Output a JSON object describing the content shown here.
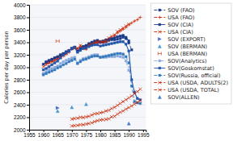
{
  "chart_data": {
    "type": "line",
    "ylabel": "Calories per day per person",
    "xlim": [
      1955,
      1996
    ],
    "ylim": [
      2000,
      4000
    ],
    "xticks": [
      1955,
      1960,
      1965,
      1970,
      1975,
      1980,
      1985,
      1990,
      1995
    ],
    "yticks": [
      2000,
      2200,
      2400,
      2600,
      2800,
      3000,
      3200,
      3400,
      3600,
      3800,
      4000
    ],
    "grid": "y",
    "legend": "right",
    "series": [
      {
        "name": "SOV (FAO)",
        "color": "#1a3a8a",
        "line_style": "dashed",
        "marker": "square",
        "x": [
          1961,
          1962,
          1963,
          1964,
          1965,
          1966,
          1967,
          1968,
          1969,
          1970,
          1971,
          1972,
          1973,
          1974,
          1975,
          1976,
          1977,
          1978,
          1979,
          1980,
          1981,
          1982,
          1983,
          1984,
          1985,
          1986,
          1987,
          1988,
          1989,
          1990,
          1991
        ],
        "values": [
          3090,
          3110,
          3130,
          3150,
          3160,
          3190,
          3210,
          3240,
          3260,
          3300,
          3320,
          3260,
          3300,
          3330,
          3340,
          3360,
          3380,
          3400,
          3410,
          3400,
          3400,
          3410,
          3430,
          3440,
          3440,
          3450,
          3460,
          3480,
          3460,
          3390,
          3280
        ]
      },
      {
        "name": "USA (FAO)",
        "color": "#cc2200",
        "line_style": "dashed",
        "marker": "plus",
        "x": [
          1961,
          1962,
          1963,
          1964,
          1965,
          1966,
          1967,
          1968,
          1969,
          1970,
          1971,
          1972,
          1973,
          1974,
          1975,
          1976,
          1977,
          1978,
          1979,
          1980,
          1981,
          1982,
          1983,
          1984,
          1985,
          1986,
          1987,
          1988,
          1989,
          1990,
          1991,
          1992,
          1993,
          1994
        ],
        "values": [
          3060,
          3070,
          3090,
          3110,
          3130,
          3160,
          3180,
          3210,
          3240,
          3290,
          3310,
          3300,
          3340,
          3310,
          3290,
          3350,
          3360,
          3380,
          3390,
          3400,
          3400,
          3410,
          3440,
          3470,
          3500,
          3550,
          3580,
          3610,
          3640,
          3680,
          3710,
          3740,
          3760,
          3800
        ]
      },
      {
        "name": "SOV (CIA)",
        "color": "#1a3a8a",
        "line_style": "solid",
        "marker": "square",
        "x": [
          1960,
          1961,
          1962,
          1963,
          1964,
          1965,
          1966,
          1967,
          1968,
          1969,
          1970,
          1971,
          1972,
          1973,
          1974,
          1975,
          1976,
          1977,
          1978,
          1979,
          1980,
          1981,
          1982,
          1983,
          1984,
          1985,
          1986,
          1987,
          1988,
          1989,
          1990
        ],
        "values": [
          3050,
          3080,
          3100,
          3120,
          3150,
          3170,
          3200,
          3220,
          3250,
          3270,
          3300,
          3320,
          3260,
          3300,
          3330,
          3350,
          3380,
          3400,
          3420,
          3430,
          3410,
          3420,
          3440,
          3450,
          3460,
          3470,
          3490,
          3500,
          3510,
          3480,
          3420
        ]
      },
      {
        "name": "USA (CIA)",
        "color": "#cc2200",
        "line_style": "dashed",
        "marker": "x",
        "x": [
          1960,
          1961,
          1962,
          1963,
          1964,
          1965,
          1966,
          1967,
          1968,
          1969,
          1970,
          1971,
          1972,
          1973,
          1974,
          1975,
          1976,
          1977,
          1978,
          1979,
          1980,
          1981,
          1982,
          1983,
          1984,
          1985,
          1986,
          1987,
          1988,
          1989,
          1990
        ],
        "values": [
          3010,
          3040,
          3070,
          3090,
          3110,
          3140,
          3160,
          3190,
          3220,
          3260,
          3300,
          3310,
          3300,
          3350,
          3310,
          3300,
          3360,
          3370,
          3400,
          3410,
          3410,
          3410,
          3430,
          3470,
          3500,
          3520,
          3570,
          3600,
          3630,
          3660,
          3690
        ]
      },
      {
        "name": "SOV (EXPORT)",
        "color": "#4466cc",
        "line_style": "none",
        "marker": "triangle-right",
        "x": [
          1965
        ],
        "values": [
          2350
        ]
      },
      {
        "name": "SOV (BERMAN)",
        "color": "#4499cc",
        "line_style": "none",
        "marker": "triangle-up",
        "x": [
          1965,
          1970,
          1975
        ],
        "values": [
          2300,
          2360,
          2410
        ]
      },
      {
        "name": "USA (BERMAN)",
        "color": "#cc4422",
        "line_style": "none",
        "marker": "letter-h",
        "x": [
          1965
        ],
        "values": [
          3420
        ]
      },
      {
        "name": "SOV(Analytics)",
        "color": "#88aadd",
        "line_style": "dashdot",
        "marker": "square",
        "x": [
          1960,
          1961,
          1962,
          1963,
          1964,
          1965,
          1966,
          1967,
          1968,
          1969,
          1970,
          1971,
          1972,
          1973,
          1974,
          1975,
          1976,
          1977,
          1978,
          1979,
          1980,
          1981,
          1982,
          1983,
          1984,
          1985,
          1986,
          1987,
          1988,
          1989,
          1990
        ],
        "values": [
          2900,
          2930,
          2960,
          2980,
          3000,
          3020,
          3060,
          3090,
          3110,
          3130,
          3150,
          3160,
          3070,
          3110,
          3140,
          3150,
          3170,
          3190,
          3200,
          3200,
          3160,
          3160,
          3160,
          3170,
          3170,
          3170,
          3180,
          3170,
          3160,
          3100,
          2950
        ]
      },
      {
        "name": "SOV(Goskomstat)",
        "color": "#2255aa",
        "line_style": "solid",
        "marker": "square",
        "x": [
          1960,
          1961,
          1962,
          1963,
          1964,
          1965,
          1966,
          1967,
          1968,
          1969,
          1970,
          1971,
          1972,
          1973,
          1974,
          1975,
          1976,
          1977,
          1978,
          1979,
          1980,
          1981,
          1982,
          1983,
          1984,
          1985,
          1986,
          1987,
          1988,
          1989,
          1990,
          1991,
          1992,
          1993,
          1994
        ],
        "values": [
          2960,
          2980,
          3010,
          3040,
          3070,
          3100,
          3150,
          3200,
          3230,
          3260,
          3300,
          3320,
          3240,
          3270,
          3300,
          3310,
          3330,
          3350,
          3360,
          3360,
          3340,
          3350,
          3360,
          3370,
          3380,
          3390,
          3400,
          3410,
          3410,
          3370,
          3260,
          2800,
          2600,
          2500,
          2480
        ]
      },
      {
        "name": "SOV(Russia, official)",
        "color": "#3377bb",
        "line_style": "dashed",
        "marker": "square",
        "x": [
          1960,
          1961,
          1962,
          1963,
          1964,
          1965,
          1966,
          1967,
          1968,
          1969,
          1970,
          1971,
          1972,
          1973,
          1974,
          1975,
          1976,
          1977,
          1978,
          1979,
          1980,
          1981,
          1982,
          1983,
          1984,
          1985,
          1986,
          1987,
          1988,
          1989,
          1990,
          1991,
          1992,
          1993,
          1994
        ],
        "values": [
          2880,
          2900,
          2920,
          2940,
          2960,
          2990,
          3010,
          3040,
          3060,
          3090,
          3110,
          3130,
          3060,
          3090,
          3120,
          3130,
          3150,
          3170,
          3180,
          3180,
          3160,
          3170,
          3180,
          3190,
          3200,
          3210,
          3220,
          3220,
          3210,
          3170,
          3070,
          2700,
          2450,
          2430,
          2420
        ]
      },
      {
        "name": "USA (USDA, ADULTS(2)",
        "color": "#cc2200",
        "line_style": "dashed",
        "marker": "x",
        "x": [
          1970,
          1971,
          1972,
          1973,
          1974,
          1975,
          1976,
          1977,
          1978,
          1979,
          1980,
          1981,
          1982,
          1983,
          1984,
          1985,
          1986,
          1987,
          1988,
          1989,
          1990,
          1991,
          1992,
          1993,
          1994
        ],
        "values": [
          2170,
          2180,
          2185,
          2200,
          2195,
          2205,
          2215,
          2235,
          2255,
          2260,
          2270,
          2280,
          2300,
          2310,
          2340,
          2360,
          2390,
          2420,
          2450,
          2480,
          2510,
          2540,
          2580,
          2610,
          2650
        ]
      },
      {
        "name": "USA (USDA, TOTAL)",
        "color": "#cc2200",
        "line_style": "dashed",
        "marker": "x",
        "x": [
          1970,
          1971,
          1972,
          1973,
          1974,
          1975,
          1976,
          1977,
          1978,
          1979,
          1980,
          1981,
          1982,
          1983,
          1984,
          1985,
          1986,
          1987,
          1988,
          1989,
          1990,
          1991,
          1992,
          1993,
          1994
        ],
        "values": [
          2060,
          2065,
          2070,
          2080,
          2080,
          2090,
          2100,
          2110,
          2130,
          2145,
          2155,
          2160,
          2165,
          2175,
          2205,
          2215,
          2250,
          2280,
          2300,
          2330,
          2355,
          2380,
          2410,
          2440,
          2465
        ]
      },
      {
        "name": "SOV(ALLEN)",
        "color": "#4477cc",
        "line_style": "none",
        "marker": "triangle-up",
        "x": [
          1990
        ],
        "values": [
          2100
        ]
      }
    ]
  }
}
